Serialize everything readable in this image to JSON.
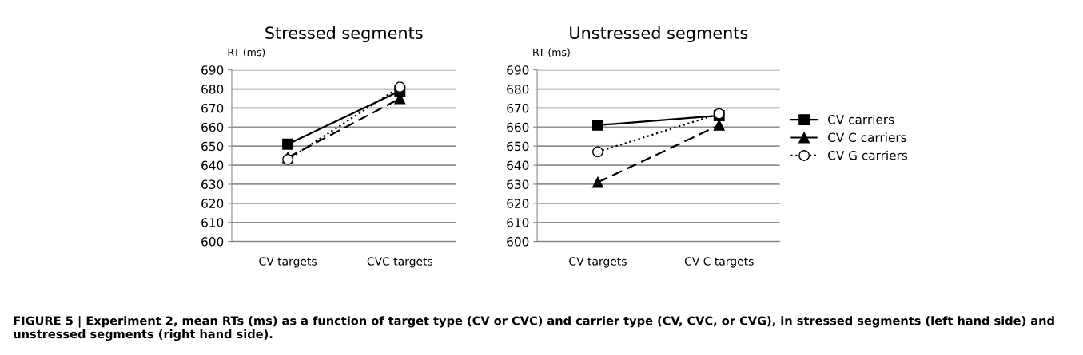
{
  "chart_data": [
    {
      "type": "line",
      "title": "Stressed segments",
      "ylabel": "RT (ms)",
      "categories": [
        "CV targets",
        "CVC targets"
      ],
      "series": [
        {
          "color": "#000000",
          "values": [
            651,
            679
          ],
          "marker": "square",
          "line_style": "solid"
        },
        {
          "color": "#000000",
          "values": [
            644,
            675
          ],
          "marker": "triangle",
          "line_style": "dashed"
        },
        {
          "color": "#000000",
          "values": [
            643,
            681
          ],
          "marker": "circle",
          "line_style": "dotted"
        }
      ],
      "ylim": [
        600,
        690
      ],
      "yticks": [
        600,
        610,
        620,
        630,
        640,
        650,
        660,
        670,
        680,
        690
      ],
      "grid": "y",
      "legend": false,
      "annotations": [
        "FIGURE 5 | Experiment 2, mean RTs (ms) as a function of target type (CV or CVC) and carrier type (CV, CVC, or CVG), in stressed segments (left hand side) and unstressed segments (right hand side)."
      ]
    },
    {
      "type": "line",
      "title": "Unstressed segments",
      "ylabel": "RT (ms)",
      "categories": [
        "CV targets",
        "CV C targets"
      ],
      "series": [
        {
          "name": "CV carriers",
          "color": "#000000",
          "values": [
            661,
            666
          ],
          "marker": "square",
          "line_style": "solid"
        },
        {
          "name": "CV C carriers",
          "color": "#000000",
          "values": [
            631,
            661
          ],
          "marker": "triangle",
          "line_style": "dashed"
        },
        {
          "name": "CV G carriers",
          "color": "#000000",
          "values": [
            647,
            667
          ],
          "marker": "circle",
          "line_style": "dotted"
        }
      ],
      "ylim": [
        600,
        690
      ],
      "yticks": [
        600,
        610,
        620,
        630,
        640,
        650,
        660,
        670,
        680,
        690
      ],
      "grid": "y",
      "legend": "right"
    }
  ]
}
